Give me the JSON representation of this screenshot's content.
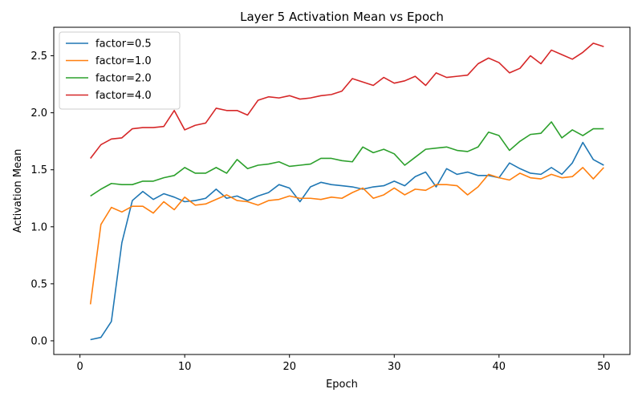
{
  "chart_data": {
    "type": "line",
    "title": "Layer 5 Activation Mean vs Epoch",
    "xlabel": "Epoch",
    "ylabel": "Activation Mean",
    "xlim": [
      -2.5,
      52.5
    ],
    "ylim": [
      -0.12,
      2.75
    ],
    "xticks": [
      0,
      10,
      20,
      30,
      40,
      50
    ],
    "yticks": [
      0.0,
      0.5,
      1.0,
      1.5,
      2.0,
      2.5
    ],
    "xtick_labels": [
      "0",
      "10",
      "20",
      "30",
      "40",
      "50"
    ],
    "ytick_labels": [
      "0.0",
      "0.5",
      "1.0",
      "1.5",
      "2.0",
      "2.5"
    ],
    "grid": false,
    "legend_position": "top-left",
    "x": [
      1,
      2,
      3,
      4,
      5,
      6,
      7,
      8,
      9,
      10,
      11,
      12,
      13,
      14,
      15,
      16,
      17,
      18,
      19,
      20,
      21,
      22,
      23,
      24,
      25,
      26,
      27,
      28,
      29,
      30,
      31,
      32,
      33,
      34,
      35,
      36,
      37,
      38,
      39,
      40,
      41,
      42,
      43,
      44,
      45,
      46,
      47,
      48,
      49,
      50
    ],
    "series": [
      {
        "name": "factor=0.5",
        "color": "#1f77b4",
        "values": [
          0.01,
          0.03,
          0.17,
          0.86,
          1.23,
          1.31,
          1.24,
          1.29,
          1.26,
          1.22,
          1.23,
          1.25,
          1.33,
          1.25,
          1.27,
          1.23,
          1.27,
          1.3,
          1.37,
          1.34,
          1.22,
          1.35,
          1.39,
          1.37,
          1.36,
          1.35,
          1.33,
          1.35,
          1.36,
          1.4,
          1.36,
          1.44,
          1.48,
          1.35,
          1.51,
          1.46,
          1.48,
          1.45,
          1.45,
          1.43,
          1.56,
          1.51,
          1.47,
          1.46,
          1.52,
          1.46,
          1.56,
          1.74,
          1.59,
          1.54
        ]
      },
      {
        "name": "factor=1.0",
        "color": "#ff7f0e",
        "values": [
          0.32,
          1.02,
          1.17,
          1.13,
          1.18,
          1.18,
          1.12,
          1.22,
          1.15,
          1.26,
          1.19,
          1.2,
          1.24,
          1.28,
          1.23,
          1.22,
          1.19,
          1.23,
          1.24,
          1.27,
          1.25,
          1.25,
          1.24,
          1.26,
          1.25,
          1.3,
          1.34,
          1.25,
          1.28,
          1.34,
          1.28,
          1.33,
          1.32,
          1.37,
          1.37,
          1.36,
          1.28,
          1.35,
          1.46,
          1.43,
          1.41,
          1.47,
          1.43,
          1.42,
          1.46,
          1.43,
          1.44,
          1.52,
          1.42,
          1.52
        ]
      },
      {
        "name": "factor=2.0",
        "color": "#2ca02c",
        "values": [
          1.27,
          1.33,
          1.38,
          1.37,
          1.37,
          1.4,
          1.4,
          1.43,
          1.45,
          1.52,
          1.47,
          1.47,
          1.52,
          1.47,
          1.59,
          1.51,
          1.54,
          1.55,
          1.57,
          1.53,
          1.54,
          1.55,
          1.6,
          1.6,
          1.58,
          1.57,
          1.7,
          1.65,
          1.68,
          1.64,
          1.54,
          1.61,
          1.68,
          1.69,
          1.7,
          1.67,
          1.66,
          1.7,
          1.83,
          1.8,
          1.67,
          1.75,
          1.81,
          1.82,
          1.92,
          1.78,
          1.85,
          1.8,
          1.86,
          1.86
        ]
      },
      {
        "name": "factor=4.0",
        "color": "#d62728",
        "values": [
          1.6,
          1.72,
          1.77,
          1.78,
          1.86,
          1.87,
          1.87,
          1.88,
          2.02,
          1.85,
          1.89,
          1.91,
          2.04,
          2.02,
          2.02,
          1.98,
          2.11,
          2.14,
          2.13,
          2.15,
          2.12,
          2.13,
          2.15,
          2.16,
          2.19,
          2.3,
          2.27,
          2.24,
          2.31,
          2.26,
          2.28,
          2.32,
          2.24,
          2.35,
          2.31,
          2.32,
          2.33,
          2.43,
          2.48,
          2.44,
          2.35,
          2.39,
          2.5,
          2.43,
          2.55,
          2.51,
          2.47,
          2.53,
          2.61,
          2.58
        ]
      }
    ]
  }
}
